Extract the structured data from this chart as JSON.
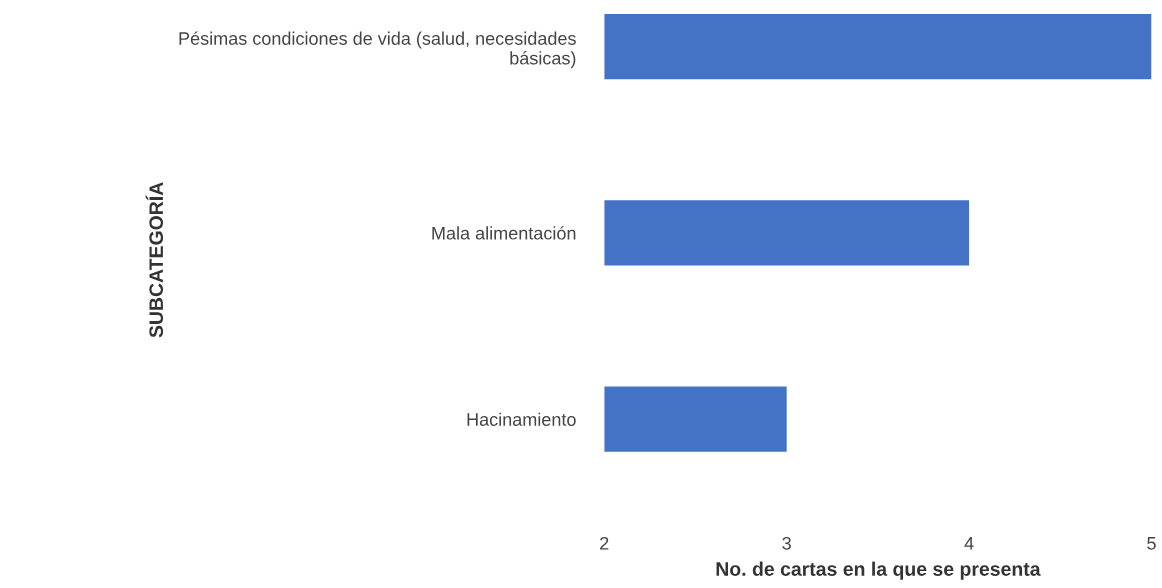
{
  "chart_data": {
    "type": "bar",
    "orientation": "horizontal",
    "xlabel": "No. de cartas en la que se presenta",
    "ylabel": "SUBCATEGORÍA",
    "categories": [
      "Pésimas condiciones de vida (salud, necesidades básicas)",
      "Mala alimentación",
      "Hacinamiento"
    ],
    "values": [
      5,
      4,
      3
    ],
    "color": "#4472c4",
    "xlim": [
      2,
      5
    ],
    "xticks": [
      2,
      3,
      4,
      5
    ],
    "grid": false,
    "legend": false
  }
}
